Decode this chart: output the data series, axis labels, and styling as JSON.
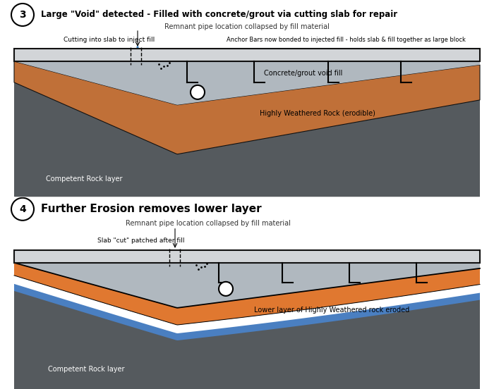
{
  "bg_color": "#ffffff",
  "panel1": {
    "title_num": "3",
    "title": "Large \"Void\" detected - Filled with concrete/grout via cutting slab for repair",
    "subtitle": "Remnant pipe location collapsed by fill material",
    "label_left": "Cutting into slab to inject fill",
    "label_right": "Anchor Bars now bonded to injected fill - holds slab & fill together as large block",
    "label_fill": "Concrete/grout void fill",
    "label_rock": "Highly Weathered Rock (erodible)",
    "label_competent": "Competent Rock layer"
  },
  "panel2": {
    "title_num": "4",
    "title": "Further Erosion removes lower layer",
    "subtitle": "Remnant pipe location collapsed by fill material",
    "label_left": "Slab \"cut\" patched after fill",
    "label_fill": "Lower layer of Highly Weathered rock eroded",
    "label_competent": "Competent Rock layer"
  },
  "slab_color": "#d2d5d8",
  "slab_edge": "#111111",
  "dark_rock_color": "#555a5e",
  "brown_color": "#c07038",
  "grout_color": "#b0b8bf",
  "orange_color": "#e07830",
  "blue_color": "#4a7fc1",
  "white_color": "#ffffff"
}
